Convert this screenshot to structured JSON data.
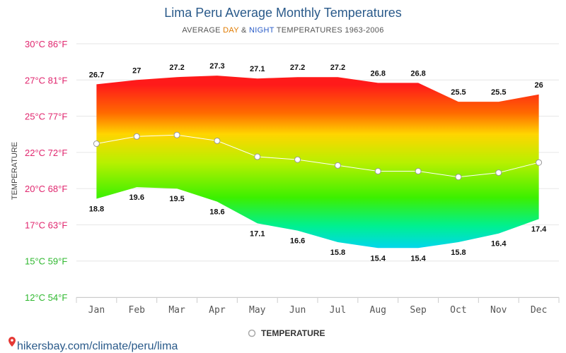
{
  "chart_data": {
    "type": "area",
    "title": "Lima Peru Average Monthly Temperatures",
    "subtitle": {
      "prefix": "AVERAGE ",
      "day_word": "DAY",
      "middle": " & ",
      "night_word": "NIGHT",
      "suffix": " TEMPERATURES 1963-2006"
    },
    "ylabel": "TEMPERATURE",
    "categories": [
      "Jan",
      "Feb",
      "Mar",
      "Apr",
      "May",
      "Jun",
      "Jul",
      "Aug",
      "Sep",
      "Oct",
      "Nov",
      "Dec"
    ],
    "y_ticks": [
      {
        "celsius": 12,
        "label": "12°C 54°F",
        "color": "#2fb82f"
      },
      {
        "celsius": 14.5,
        "label": "15°C 59°F",
        "color": "#2fb82f"
      },
      {
        "celsius": 17,
        "label": "17°C 63°F",
        "color": "#e0266e"
      },
      {
        "celsius": 19.5,
        "label": "20°C 68°F",
        "color": "#e0266e"
      },
      {
        "celsius": 22,
        "label": "22°C 72°F",
        "color": "#e0266e"
      },
      {
        "celsius": 24.5,
        "label": "25°C 77°F",
        "color": "#e0266e"
      },
      {
        "celsius": 27,
        "label": "27°C 81°F",
        "color": "#e0266e"
      },
      {
        "celsius": 29.5,
        "label": "30°C 86°F",
        "color": "#e0266e"
      }
    ],
    "ylim": [
      12,
      29.5
    ],
    "series": [
      {
        "name": "Day",
        "values": [
          26.7,
          27,
          27.2,
          27.3,
          27.1,
          27.2,
          27.2,
          26.8,
          26.8,
          25.5,
          25.5,
          26
        ]
      },
      {
        "name": "Night",
        "values": [
          18.8,
          19.6,
          19.5,
          18.6,
          17.1,
          16.6,
          15.8,
          15.4,
          15.4,
          15.8,
          16.4,
          17.4
        ]
      },
      {
        "name": "Temperature",
        "values": [
          22.6,
          23.1,
          23.2,
          22.8,
          21.7,
          21.5,
          21.1,
          20.7,
          20.7,
          20.3,
          20.6,
          21.3
        ]
      }
    ],
    "legend": {
      "label": "TEMPERATURE",
      "position": "bottom-center"
    },
    "colors": {
      "title": "#2a5a8a",
      "day": "#e07b00",
      "night": "#2a5cc8",
      "line": "#ffffff",
      "grid": "#e6e6e6"
    }
  },
  "source": {
    "text": "hikersbay.com/climate/peru/lima",
    "pin_color": "#e53935"
  }
}
